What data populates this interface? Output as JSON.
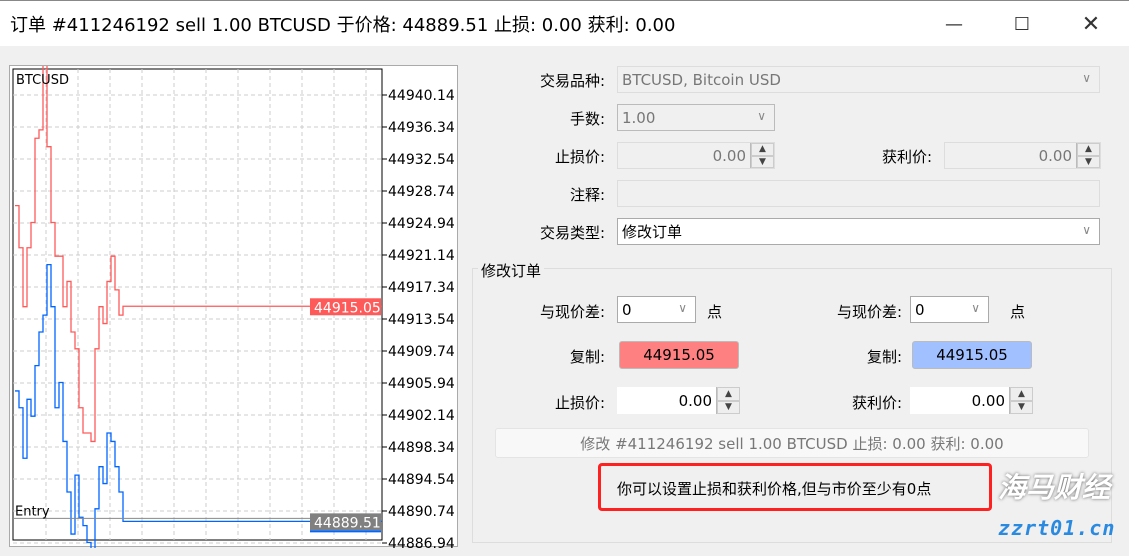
{
  "window": {
    "title": "订单 #411246192 sell 1.00 BTCUSD 于价格: 44889.51 止损: 0.00 获利: 0.00",
    "minimize_icon": "minimize-icon",
    "maximize_icon": "maximize-icon",
    "close_icon": "close-icon"
  },
  "form": {
    "symbol_label": "交易品种:",
    "symbol_value": "BTCUSD, Bitcoin USD",
    "volume_label": "手数:",
    "volume_value": "1.00",
    "sl_label": "止损价:",
    "sl_value": "0.00",
    "tp_label": "获利价:",
    "tp_value": "0.00",
    "comment_label": "注释:",
    "comment_value": "",
    "type_label": "交易类型:",
    "type_value": "修改订单"
  },
  "modify": {
    "group_title": "修改订单",
    "diff_label": "与现价差:",
    "sl_diff": "0",
    "tp_diff": "0",
    "points": "点",
    "copy_label": "复制:",
    "sl_copy": "44915.05",
    "tp_copy": "44915.05",
    "sl_label": "止损价:",
    "sl_value": "0.00",
    "tp_label": "获利价:",
    "tp_value": "0.00",
    "submit": "修改 #411246192 sell 1.00 BTCUSD 止损: 0.00 获利: 0.00",
    "hint": "你可以设置止损和获利价格,但与市价至少有0点"
  },
  "watermark": {
    "text": "海马财经",
    "url": "zzrt01.cn"
  },
  "colors": {
    "ask": "#ff5a5a",
    "bid": "#0066ff",
    "copy_sl": "#ff8080",
    "copy_tp": "#a0c0ff",
    "hint_border": "#ff2020"
  },
  "chart_data": {
    "type": "line",
    "title": "BTCUSD",
    "y_ticks": [
      "44940.14",
      "44936.34",
      "44932.54",
      "44928.74",
      "44924.94",
      "44921.14",
      "44917.34",
      "44913.54",
      "44909.74",
      "44905.94",
      "44902.14",
      "44898.34",
      "44894.54",
      "44890.74",
      "44886.94"
    ],
    "ylim": [
      44886.0,
      44943.5
    ],
    "grid": true,
    "ask_label": "44915.05",
    "ask_price": 44915.05,
    "entry_label": "Entry",
    "entry_price": 44889.51,
    "entry_price_label": "44889.51",
    "series": [
      {
        "values": [
          44927,
          44922,
          44915,
          44922,
          44925,
          44935,
          44936,
          44944,
          44934,
          44925,
          44921,
          44921,
          44915,
          44918,
          44912,
          44910,
          44903,
          44900,
          44900,
          44899,
          44910,
          44915,
          44913,
          44918,
          44921,
          44917,
          44914,
          44915.05
        ]
      },
      {
        "values": [
          44905,
          44903,
          44897,
          44904,
          44902,
          44908,
          44912,
          44914,
          44920,
          44915,
          44903,
          44906,
          44899,
          44893,
          44888,
          44895,
          44890,
          44889,
          44887,
          44886,
          44891,
          44896,
          44894,
          44900,
          44899,
          44896,
          44893,
          44889.51
        ]
      }
    ]
  }
}
